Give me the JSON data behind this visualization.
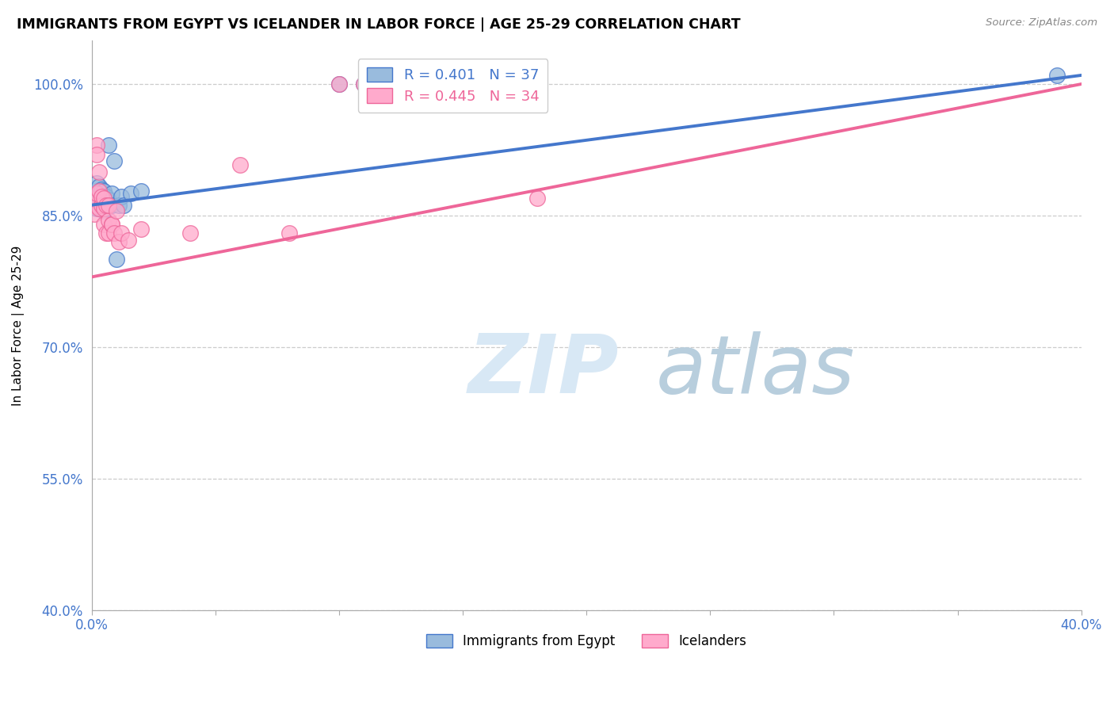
{
  "title": "IMMIGRANTS FROM EGYPT VS ICELANDER IN LABOR FORCE | AGE 25-29 CORRELATION CHART",
  "source": "Source: ZipAtlas.com",
  "ylabel": "In Labor Force | Age 25-29",
  "xlim": [
    0.0,
    0.4
  ],
  "ylim": [
    0.4,
    1.05
  ],
  "yticks": [
    0.4,
    0.55,
    0.7,
    0.85,
    1.0
  ],
  "ytick_labels": [
    "40.0%",
    "55.0%",
    "70.0%",
    "85.0%",
    "100.0%"
  ],
  "xticks": [
    0.0,
    0.05,
    0.1,
    0.15,
    0.2,
    0.25,
    0.3,
    0.35,
    0.4
  ],
  "blue_R": 0.401,
  "blue_N": 37,
  "pink_R": 0.445,
  "pink_N": 34,
  "blue_color": "#99BBDD",
  "pink_color": "#FFAACC",
  "line_blue": "#4477CC",
  "line_pink": "#EE6699",
  "legend_label_blue": "Immigrants from Egypt",
  "legend_label_pink": "Icelanders",
  "blue_line_x": [
    0.0,
    0.4
  ],
  "blue_line_y": [
    0.862,
    1.01
  ],
  "pink_line_x": [
    0.0,
    0.4
  ],
  "pink_line_y": [
    0.78,
    1.0
  ],
  "blue_scatter_x": [
    0.001,
    0.001,
    0.001,
    0.002,
    0.002,
    0.002,
    0.002,
    0.003,
    0.003,
    0.003,
    0.003,
    0.003,
    0.004,
    0.004,
    0.004,
    0.004,
    0.005,
    0.005,
    0.005,
    0.006,
    0.006,
    0.007,
    0.007,
    0.008,
    0.008,
    0.009,
    0.01,
    0.011,
    0.012,
    0.013,
    0.016,
    0.02,
    0.1,
    0.11,
    0.12,
    0.13,
    0.39
  ],
  "blue_scatter_y": [
    0.868,
    0.878,
    0.862,
    0.875,
    0.887,
    0.858,
    0.865,
    0.862,
    0.87,
    0.875,
    0.883,
    0.86,
    0.858,
    0.872,
    0.88,
    0.865,
    0.855,
    0.868,
    0.878,
    0.858,
    0.872,
    0.868,
    0.93,
    0.875,
    0.862,
    0.912,
    0.8,
    0.862,
    0.872,
    0.862,
    0.875,
    0.878,
    1.0,
    1.0,
    1.0,
    1.0,
    1.01
  ],
  "pink_scatter_x": [
    0.001,
    0.001,
    0.001,
    0.002,
    0.002,
    0.002,
    0.003,
    0.003,
    0.003,
    0.004,
    0.004,
    0.005,
    0.005,
    0.005,
    0.006,
    0.006,
    0.007,
    0.007,
    0.007,
    0.008,
    0.008,
    0.009,
    0.01,
    0.011,
    0.012,
    0.015,
    0.02,
    0.04,
    0.06,
    0.08,
    0.1,
    0.11,
    0.13,
    0.18
  ],
  "pink_scatter_y": [
    0.868,
    0.862,
    0.852,
    0.93,
    0.92,
    0.875,
    0.9,
    0.878,
    0.858,
    0.862,
    0.872,
    0.858,
    0.84,
    0.87,
    0.83,
    0.862,
    0.845,
    0.862,
    0.83,
    0.84,
    0.84,
    0.83,
    0.855,
    0.82,
    0.83,
    0.822,
    0.835,
    0.83,
    0.908,
    0.83,
    1.0,
    1.0,
    1.0,
    0.87
  ]
}
